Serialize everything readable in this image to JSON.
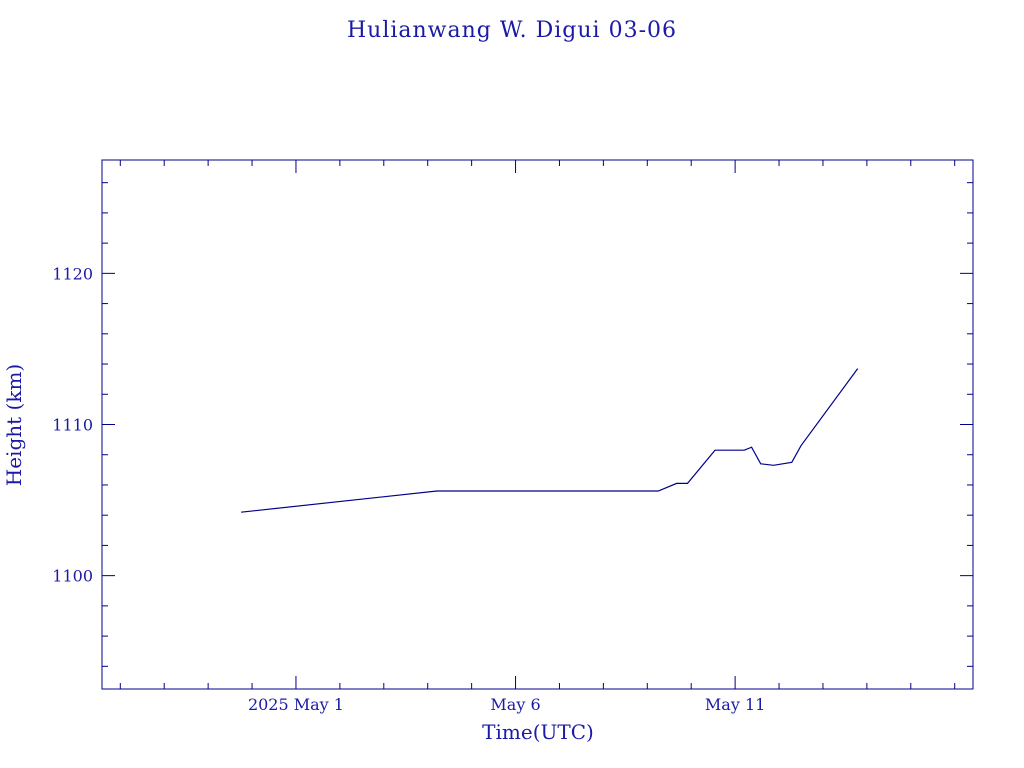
{
  "colors": {
    "ink": "#00008b",
    "text": "#1a1aa6",
    "background": "#ffffff"
  },
  "chart_data": {
    "type": "line",
    "title": "Hulianwang W. Digui 03-06",
    "xlabel": "Time(UTC)",
    "ylabel": "Height (km)",
    "xlim": [
      "2025-04-26T14:00Z",
      "2025-05-16T10:00Z"
    ],
    "ylim": [
      1092.5,
      1127.5
    ],
    "grid": false,
    "legend": "none",
    "x_ticks": [
      {
        "value": "2025-05-01T00:00Z",
        "label": "2025 May  1"
      },
      {
        "value": "2025-05-06T00:00Z",
        "label": "May  6"
      },
      {
        "value": "2025-05-11T00:00Z",
        "label": "May 11"
      }
    ],
    "y_ticks": [
      {
        "value": 1100,
        "label": "1100"
      },
      {
        "value": 1110,
        "label": "1110"
      },
      {
        "value": 1120,
        "label": "1120"
      }
    ],
    "series": [
      {
        "x": [
          "2025-04-29T18:00Z",
          "2025-05-04T05:00Z",
          "2025-05-09T06:00Z",
          "2025-05-09T16:00Z",
          "2025-05-09T22:00Z",
          "2025-05-10T13:00Z",
          "2025-05-11T05:00Z",
          "2025-05-11T09:00Z",
          "2025-05-11T14:00Z",
          "2025-05-11T21:00Z",
          "2025-05-12T07:00Z",
          "2025-05-12T12:00Z",
          "2025-05-13T19:00Z"
        ],
        "values": [
          1104.2,
          1105.6,
          1105.6,
          1106.1,
          1106.1,
          1108.3,
          1108.3,
          1108.5,
          1107.4,
          1107.3,
          1107.5,
          1108.6,
          1113.7
        ]
      }
    ]
  }
}
